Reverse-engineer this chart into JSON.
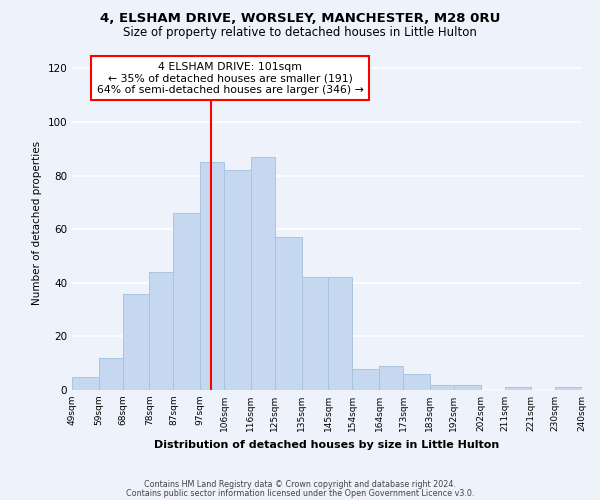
{
  "title": "4, ELSHAM DRIVE, WORSLEY, MANCHESTER, M28 0RU",
  "subtitle": "Size of property relative to detached houses in Little Hulton",
  "xlabel": "Distribution of detached houses by size in Little Hulton",
  "ylabel": "Number of detached properties",
  "bar_color": "#c5d8f0",
  "bar_edge_color": "#a8c4e0",
  "vline_x": 101,
  "vline_color": "red",
  "annotation_title": "4 ELSHAM DRIVE: 101sqm",
  "annotation_line1": "← 35% of detached houses are smaller (191)",
  "annotation_line2": "64% of semi-detached houses are larger (346) →",
  "annotation_box_color": "red",
  "bins": [
    49,
    59,
    68,
    78,
    87,
    97,
    106,
    116,
    125,
    135,
    145,
    154,
    164,
    173,
    183,
    192,
    202,
    211,
    221,
    230,
    240
  ],
  "counts": [
    5,
    12,
    36,
    44,
    66,
    85,
    82,
    87,
    57,
    42,
    42,
    8,
    9,
    6,
    2,
    2,
    0,
    1,
    0,
    1
  ],
  "tick_labels": [
    "49sqm",
    "59sqm",
    "68sqm",
    "78sqm",
    "87sqm",
    "97sqm",
    "106sqm",
    "116sqm",
    "125sqm",
    "135sqm",
    "145sqm",
    "154sqm",
    "164sqm",
    "173sqm",
    "183sqm",
    "192sqm",
    "202sqm",
    "211sqm",
    "221sqm",
    "230sqm",
    "240sqm"
  ],
  "ylim": [
    0,
    125
  ],
  "yticks": [
    0,
    20,
    40,
    60,
    80,
    100,
    120
  ],
  "footer1": "Contains HM Land Registry data © Crown copyright and database right 2024.",
  "footer2": "Contains public sector information licensed under the Open Government Licence v3.0.",
  "background_color": "#eef3fb"
}
